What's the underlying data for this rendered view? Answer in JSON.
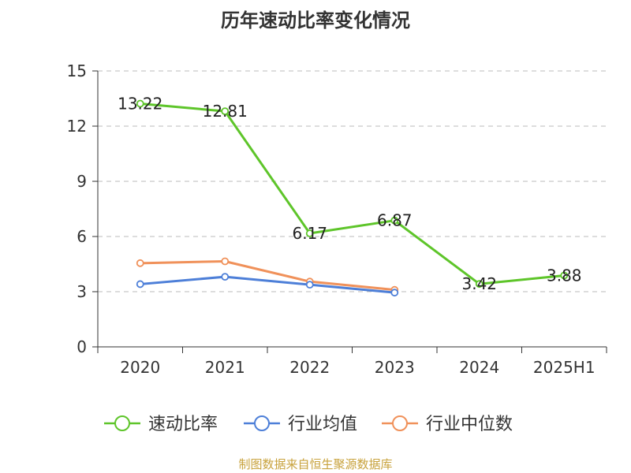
{
  "title": "历年速动比率变化情况",
  "source_note": "制图数据来自恒生聚源数据库",
  "colors": {
    "grid": "#bbbbbb",
    "axis": "#333333",
    "label": "#222222"
  },
  "chart_data": {
    "type": "line",
    "categories": [
      "2020",
      "2021",
      "2022",
      "2023",
      "2024",
      "2025H1"
    ],
    "ylim": [
      0,
      15
    ],
    "yticks": [
      0,
      3,
      6,
      9,
      12,
      15
    ],
    "grid": "horizontal-dashed",
    "legend_position": "bottom",
    "series": [
      {
        "name": "速动比率",
        "color": "#5ec52a",
        "values": [
          13.22,
          12.81,
          6.17,
          6.87,
          3.42,
          3.88
        ],
        "labels": [
          "13.22",
          "12.81",
          "6.17",
          "6.87",
          "3.42",
          "3.88"
        ]
      },
      {
        "name": "行业均值",
        "color": "#4d7fd8",
        "values": [
          3.41,
          3.81,
          3.38,
          2.95,
          null,
          null
        ]
      },
      {
        "name": "行业中位数",
        "color": "#f0915a",
        "values": [
          4.55,
          4.65,
          3.55,
          3.1,
          null,
          null
        ]
      }
    ]
  }
}
